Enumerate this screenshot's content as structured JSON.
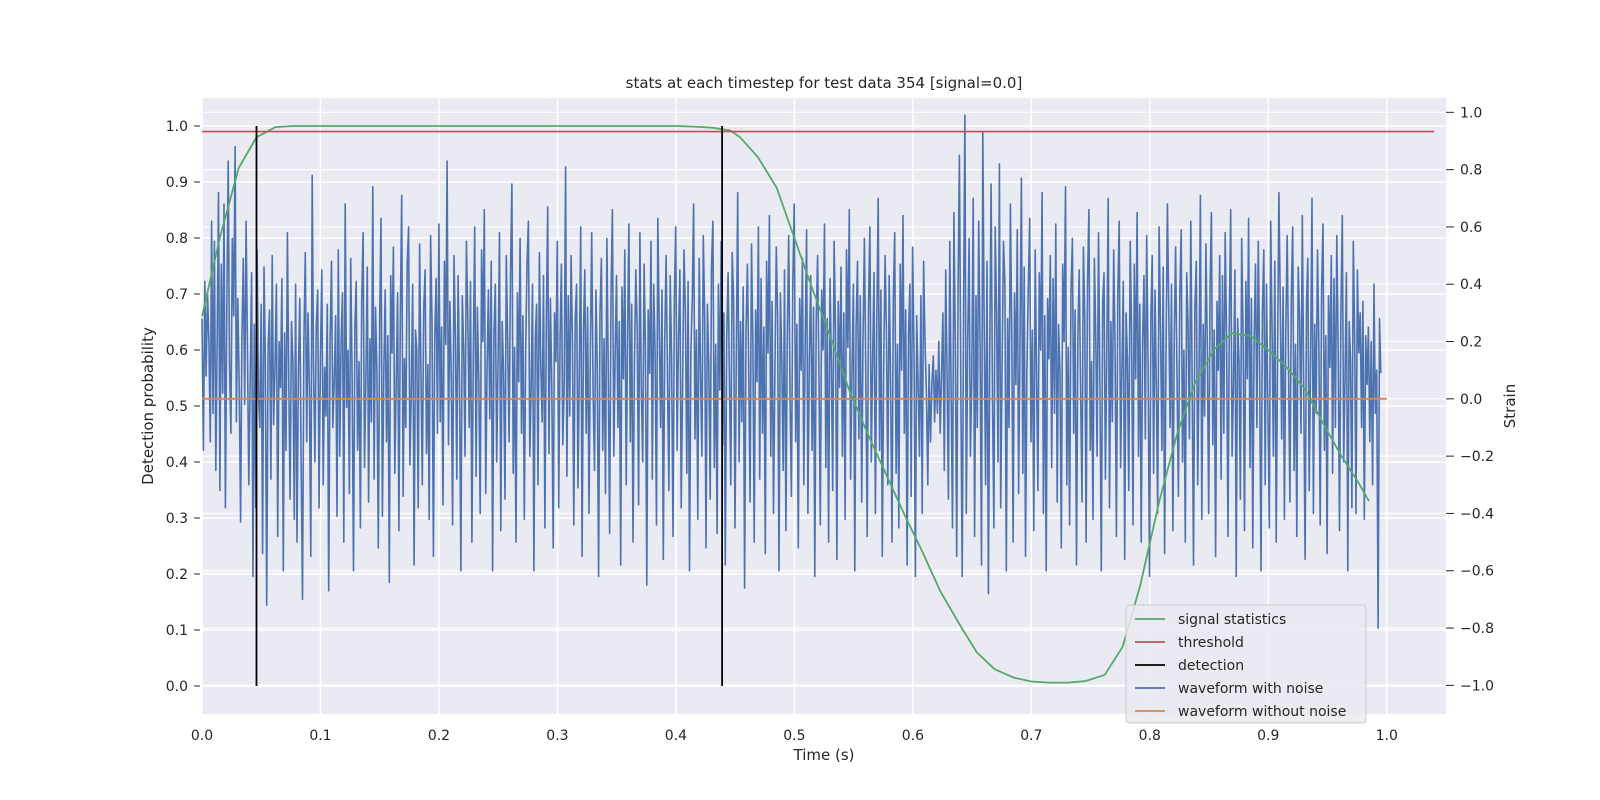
{
  "chart_data": {
    "type": "line",
    "title": "stats at each timestep for test data 354 [signal=0.0]",
    "xlabel": "Time (s)",
    "ylabel_left": "Detection probability",
    "ylabel_right": "Strain",
    "xlim": [
      0.0,
      1.05
    ],
    "ylim_left": [
      -0.05,
      1.05
    ],
    "ylim_right": [
      -1.1,
      1.05
    ],
    "x_ticks": [
      0.0,
      0.1,
      0.2,
      0.3,
      0.4,
      0.5,
      0.6,
      0.7,
      0.8,
      0.9,
      1.0
    ],
    "x_tick_labels": [
      "0.0",
      "0.1",
      "0.2",
      "0.3",
      "0.4",
      "0.5",
      "0.6",
      "0.7",
      "0.8",
      "0.9",
      "1.0"
    ],
    "y_left_ticks": [
      0.0,
      0.1,
      0.2,
      0.3,
      0.4,
      0.5,
      0.6,
      0.7,
      0.8,
      0.9,
      1.0
    ],
    "y_left_tick_labels": [
      "0.0",
      "0.1",
      "0.2",
      "0.3",
      "0.4",
      "0.5",
      "0.6",
      "0.7",
      "0.8",
      "0.9",
      "1.0"
    ],
    "y_right_ticks": [
      -1.0,
      -0.8,
      -0.6,
      -0.4,
      -0.2,
      0.0,
      0.2,
      0.4,
      0.6,
      0.8,
      1.0
    ],
    "y_right_tick_labels": [
      "−1.0",
      "−0.8",
      "−0.6",
      "−0.4",
      "−0.2",
      "0.0",
      "0.2",
      "0.4",
      "0.6",
      "0.8",
      "1.0"
    ],
    "grid": true,
    "background": "#eaeaf2",
    "legend_position": "lower-right",
    "series": [
      {
        "name": "signal statistics",
        "axis": "left",
        "color": "#55a868",
        "x": [
          0.0,
          0.015,
          0.031,
          0.046,
          0.062,
          0.077,
          0.092,
          0.108,
          0.123,
          0.154,
          0.2,
          0.25,
          0.3,
          0.35,
          0.4,
          0.415,
          0.431,
          0.446,
          0.454,
          0.469,
          0.485,
          0.5,
          0.515,
          0.531,
          0.546,
          0.562,
          0.577,
          0.592,
          0.608,
          0.623,
          0.638,
          0.654,
          0.669,
          0.685,
          0.7,
          0.715,
          0.731,
          0.746,
          0.762,
          0.777,
          0.792,
          0.808,
          0.823,
          0.838,
          0.854,
          0.869,
          0.885,
          0.9,
          0.915,
          0.931,
          0.946,
          0.962,
          0.977,
          0.985
        ],
        "values": [
          0.66,
          0.8,
          0.925,
          0.98,
          0.998,
          1.0,
          1.0,
          1.0,
          1.0,
          1.0,
          1.0,
          1.0,
          1.0,
          1.0,
          1.0,
          0.999,
          0.997,
          0.992,
          0.98,
          0.945,
          0.89,
          0.8,
          0.71,
          0.62,
          0.53,
          0.45,
          0.38,
          0.31,
          0.24,
          0.17,
          0.115,
          0.06,
          0.03,
          0.015,
          0.008,
          0.006,
          0.006,
          0.009,
          0.02,
          0.07,
          0.18,
          0.33,
          0.45,
          0.54,
          0.6,
          0.63,
          0.625,
          0.6,
          0.57,
          0.53,
          0.47,
          0.41,
          0.36,
          0.33
        ]
      },
      {
        "name": "threshold",
        "axis": "left",
        "color": "#c44e52",
        "x": [
          0.0,
          1.04
        ],
        "values": [
          0.99,
          0.99
        ]
      },
      {
        "name": "detection",
        "axis": "left",
        "color": "#000000",
        "vlines_x": [
          0.046,
          0.439
        ],
        "y_range": [
          0.0,
          1.0
        ]
      },
      {
        "name": "waveform with noise",
        "axis": "right",
        "color": "#4c72b0",
        "x_range": [
          0.0,
          0.995
        ],
        "values": [
          0.28,
          -0.18,
          0.41,
          0.08,
          0.37,
          0.2,
          -0.15,
          0.62,
          -0.05,
          0.55,
          -0.25,
          0.18,
          0.72,
          -0.32,
          0.47,
          0.02,
          0.68,
          -0.38,
          0.31,
          0.83,
          0.12,
          -0.12,
          0.56,
          0.29,
          0.88,
          -0.08,
          0.35,
          0.05,
          -0.43,
          0.21,
          0.49,
          -0.02,
          0.62,
          0.19,
          -0.3,
          0.07,
          0.44,
          -0.62,
          0.26,
          -0.38,
          0.52,
          0.01,
          -0.1,
          0.33,
          -0.54,
          0.46,
          0.14,
          -0.72,
          0.18,
          0.31,
          -0.28,
          0.5,
          -0.09,
          0.11,
          0.4,
          -0.48,
          0.2,
          0.04,
          0.42,
          -0.6,
          0.23,
          -0.18,
          0.58,
          0.05,
          -0.35,
          0.27,
          0.13,
          -0.42,
          0.4,
          -0.5,
          0.09,
          0.35,
          -0.25,
          -0.7,
          0.2,
          0.51,
          -0.15,
          0.3,
          0.03,
          -0.55,
          0.78,
          0.12,
          -0.22,
          0.26,
          0.38,
          -0.38,
          0.14,
          0.45,
          -0.3,
          0.11,
          -0.06,
          0.33,
          -0.67,
          0.2,
          0.48,
          -0.1,
          0.06,
          0.29,
          -0.41,
          0.52,
          -0.2,
          0.2,
          0.37,
          -0.5,
          0.68,
          -0.03,
          0.17,
          -0.33,
          0.49,
          0.08,
          -0.6,
          0.25,
          0.41,
          -0.18,
          0.13,
          -0.45,
          0.34,
          0.58,
          -0.24,
          0.07,
          0.46,
          -0.36,
          0.21,
          -0.08,
          0.74,
          -0.28,
          0.32,
          0.1,
          -0.52,
          0.28,
          0.63,
          -0.41,
          0.09,
          0.38,
          -0.15,
          0.22,
          -0.64,
          0.43,
          0.16,
          0.53,
          -0.26,
          0.05,
          0.37,
          -0.46,
          0.28,
          0.71,
          -0.34,
          0.14,
          -0.1,
          0.47,
          0.6,
          -0.23,
          0.03,
          0.4,
          -0.58,
          0.24,
          0.17,
          -0.38,
          0.54,
          0.08,
          -0.3,
          0.31,
          0.45,
          -0.19,
          0.12,
          -0.42,
          0.57,
          0.27,
          -0.55,
          0.2,
          0.42,
          -0.12,
          0.61,
          -0.08,
          0.25,
          -0.37,
          0.48,
          0.19,
          0.83,
          -0.16,
          0.34,
          0.07,
          -0.44,
          0.5,
          0.22,
          -0.28,
          0.43,
          0.06,
          -0.6,
          0.36,
          0.17,
          -0.2,
          0.55,
          0.29,
          -0.1,
          0.41,
          -0.5,
          0.15,
          0.6,
          -0.27,
          0.32,
          0.06,
          -0.4,
          0.52,
          0.2,
          0.66,
          -0.33,
          0.11,
          0.38,
          -0.07,
          0.48,
          -0.6,
          0.23,
          0.4,
          -0.22,
          0.14,
          0.58,
          -0.46,
          0.27,
          0.09,
          -0.35,
          0.5,
          0.2,
          -0.15,
          0.44,
          0.75,
          -0.26,
          0.18,
          -0.5,
          0.37,
          0.06,
          0.56,
          -0.12,
          0.29,
          -0.42,
          0.15,
          0.47,
          0.62,
          -0.2,
          0.03,
          0.4,
          -0.6,
          0.21,
          0.33,
          -0.3,
          0.51,
          0.11,
          -0.08,
          0.43,
          -0.45,
          0.26,
          0.67,
          -0.19,
          0.35,
          0.04,
          -0.52,
          0.3,
          0.13,
          0.55,
          -0.38,
          0.22,
          0.47,
          -0.16,
          0.06,
          0.81,
          -0.27,
          0.36,
          -0.06,
          0.5,
          0.19,
          -0.44,
          0.28,
          0.4,
          -0.31,
          0.1,
          0.6,
          -0.55,
          0.24,
          0.45,
          -0.12,
          0.32,
          -0.4,
          0.18,
          0.58,
          0.02,
          -0.25,
          0.38,
          0.12,
          -0.62,
          0.3,
          0.49,
          -0.18,
          0.21,
          -0.33,
          0.56,
          0.08,
          -0.47,
          0.36,
          0.66,
          -0.2,
          0.14,
          0.43,
          -0.1,
          0.27,
          -0.58,
          0.39,
          0.07,
          0.52,
          -0.3,
          0.2,
          0.61,
          -0.15,
          0.33,
          -0.5,
          0.11,
          0.45,
          0.24,
          -0.37,
          0.58,
          0.04,
          -0.22,
          0.47,
          0.18,
          -0.65,
          0.31,
          0.09,
          0.55,
          -0.28,
          0.4,
          0.16,
          -0.44,
          0.63,
          0.26,
          -0.1,
          0.38,
          -0.56,
          0.2,
          0.5,
          0.07,
          -0.32,
          0.43,
          0.14,
          -0.48,
          0.36,
          0.6,
          -0.18,
          0.22,
          0.45,
          -0.38,
          0.05,
          0.52,
          0.3,
          -0.26,
          0.41,
          -0.6,
          0.17,
          0.35,
          0.68,
          -0.14,
          0.24,
          -0.42,
          0.49,
          0.1,
          -0.2,
          0.57,
          0.28,
          -0.52,
          0.33,
          0.12,
          -0.35,
          0.46,
          0.62,
          -0.24,
          0.19,
          -0.47,
          0.4,
          0.03,
          0.55,
          -0.16,
          0.3,
          -0.58,
          0.21,
          0.44,
          0.08,
          -0.3,
          0.51,
          0.35,
          -0.45,
          0.15,
          0.72,
          -0.22,
          0.27,
          -0.08,
          0.39,
          -0.66,
          0.23,
          0.47,
          0.11,
          -0.36,
          0.54,
          0.19,
          -0.5,
          0.31,
          0.06,
          0.6,
          -0.28,
          0.42,
          -0.12,
          0.25,
          -0.54,
          0.48,
          0.16,
          0.64,
          -0.2,
          0.34,
          -0.4,
          0.09,
          0.53,
          0.29,
          -0.6,
          0.37,
          0.13,
          -0.25,
          0.45,
          -0.46,
          0.22,
          0.57,
          0.02,
          -0.34,
          0.4,
          0.68,
          -0.15,
          0.26,
          -0.52,
          0.35,
          0.1,
          0.49,
          -0.3,
          0.2,
          0.59,
          -0.4,
          0.14,
          0.43,
          -0.18,
          0.32,
          -0.62,
          0.27,
          0.5,
          0.07,
          -0.44,
          0.38,
          0.17,
          0.61,
          -0.24,
          0.28,
          -0.5,
          0.42,
          0.12,
          -0.32,
          0.55,
          0.23,
          -0.56,
          0.34,
          0.04,
          0.46,
          -0.2,
          0.3,
          -0.42,
          0.52,
          0.18,
          0.66,
          -0.28,
          0.1,
          0.4,
          -0.6,
          0.25,
          0.48,
          -0.14,
          0.36,
          -0.36,
          0.2,
          0.56,
          0.08,
          -0.48,
          0.33,
          0.6,
          -0.22,
          0.15,
          0.44,
          -0.4,
          0.27,
          0.7,
          -0.18,
          0.38,
          -0.55,
          0.12,
          0.5,
          0.24,
          -0.3,
          0.43,
          0.06,
          -0.5,
          0.35,
          0.58,
          -0.26,
          0.19,
          -0.45,
          0.47,
          0.1,
          0.64,
          -0.12,
          0.31,
          -0.58,
          0.22,
          0.4,
          -0.34,
          0.53,
          0.16,
          -0.62,
          0.29,
          0.05,
          -0.2,
          0.36,
          -0.4,
          0.48,
          0.2,
          0.02,
          -0.3,
          0.12,
          -0.15,
          0.05,
          0.15,
          -0.08,
          0.1,
          -0.05,
          0.2,
          -0.12,
          0.08,
          0.3,
          -0.25,
          0.45,
          0.1,
          -0.35,
          0.55,
          0.0,
          -0.45,
          0.65,
          0.2,
          -0.55,
          0.4,
          0.85,
          0.05,
          -0.62,
          0.33,
          0.99,
          -0.4,
          0.2,
          0.56,
          -0.2,
          0.08,
          0.7,
          -0.48,
          0.36,
          -0.1,
          0.62,
          0.18,
          -0.58,
          0.93,
          0.25,
          -0.3,
          0.48,
          -0.68,
          0.15,
          0.75,
          0.0,
          -0.45,
          0.6,
          0.3,
          -0.22,
          0.82,
          -0.38,
          0.12,
          0.55,
          0.4,
          -0.6,
          0.28,
          -0.1,
          0.68,
          0.22,
          -0.5,
          0.37,
          0.05,
          0.59,
          -0.33,
          0.2,
          0.77,
          -0.26,
          0.46,
          -0.55,
          0.1,
          0.39,
          0.63,
          -0.15,
          0.24,
          -0.46,
          0.52,
          0.08,
          -0.32,
          0.44,
          0.17,
          0.72,
          -0.4,
          0.29,
          -0.6,
          0.35,
          0.14,
          0.5,
          -0.24,
          0.42,
          -0.05,
          0.61,
          -0.36,
          0.26,
          0.09,
          -0.52,
          0.47,
          0.2,
          0.74,
          -0.3,
          0.18,
          -0.44,
          0.38,
          0.56,
          -0.12,
          0.31,
          -0.58,
          0.22,
          0.45,
          0.04,
          -0.36,
          0.53,
          0.28,
          -0.5,
          0.4,
          0.66,
          -0.18,
          0.13,
          -0.42,
          0.49,
          0.21,
          -0.2,
          0.58,
          0.06,
          -0.6,
          0.34,
          0.44,
          -0.28,
          0.16,
          0.7,
          -0.38,
          0.27,
          -0.08,
          0.52,
          0.19,
          -0.48,
          0.36,
          0.62,
          -0.24,
          0.1,
          0.41,
          -0.56,
          0.3,
          0.14,
          -0.32,
          0.55,
          0.23,
          -0.44,
          0.47,
          0.07,
          0.65,
          -0.2,
          0.33,
          -0.5,
          0.2,
          0.43,
          -0.14,
          0.57,
          0.11,
          -0.62,
          0.29,
          0.5,
          -0.26,
          0.38,
          0.02,
          -0.4,
          0.6,
          0.25,
          -0.18,
          0.46,
          -0.54,
          0.15,
          0.68,
          0.3,
          -0.1,
          0.4,
          -0.46,
          0.22,
          0.53,
          0.08,
          -0.34,
          0.36,
          0.59,
          -0.22,
          0.17,
          -0.5,
          0.44,
          0.27,
          -0.14,
          0.62,
          0.04,
          -0.58,
          0.32,
          0.48,
          -0.3,
          0.12,
          0.71,
          -0.42,
          0.26,
          -0.06,
          0.54,
          0.18,
          -0.4,
          0.39,
          0.65,
          -0.16,
          0.24,
          -0.55,
          0.34,
          0.1,
          0.5,
          -0.28,
          0.43,
          -0.12,
          0.58,
          0.2,
          -0.48,
          0.3,
          0.66,
          -0.2,
          0.05,
          0.45,
          -0.62,
          0.28,
          0.13,
          -0.35,
          0.56,
          0.22,
          -0.46,
          0.41,
          0.07,
          0.63,
          -0.24,
          0.35,
          -0.52,
          0.2,
          0.47,
          -0.1,
          0.55,
          0.12,
          -0.6,
          0.3,
          0.52,
          -0.3,
          0.4,
          -0.02,
          -0.45,
          0.62,
          0.26,
          -0.2,
          0.48,
          -0.5,
          0.16,
          0.72,
          0.32,
          -0.14,
          0.39,
          -0.42,
          0.24,
          0.57,
          0.09,
          -0.36,
          0.35,
          0.6,
          -0.25,
          0.19,
          -0.48,
          0.46,
          0.28,
          -0.12,
          0.64,
          0.05,
          -0.56,
          0.33,
          0.49,
          -0.32,
          0.14,
          0.7,
          -0.4,
          0.26,
          -0.05,
          0.52,
          0.18,
          -0.44,
          0.38,
          0.61,
          -0.18,
          0.22,
          -0.54,
          0.36,
          0.11,
          0.5,
          -0.26,
          0.42,
          -0.1,
          0.57,
          0.2,
          -0.46,
          0.3,
          0.64,
          -0.22,
          0.06,
          0.44,
          -0.6,
          0.27,
          0.14,
          -0.38,
          0.55,
          0.21,
          -0.4,
          0.45,
          0.16,
          0.3,
          -0.1,
          0.34,
          -0.42,
          0.22,
          0.05,
          0.25,
          -0.15,
          0.2,
          -0.3,
          0.4,
          -0.05,
          0.1,
          -0.8,
          0.28,
          0.09
        ]
      },
      {
        "name": "waveform without noise",
        "axis": "right",
        "color": "#dd8452",
        "x": [
          0.0,
          1.0
        ],
        "values": [
          0.0,
          0.0
        ]
      }
    ]
  }
}
